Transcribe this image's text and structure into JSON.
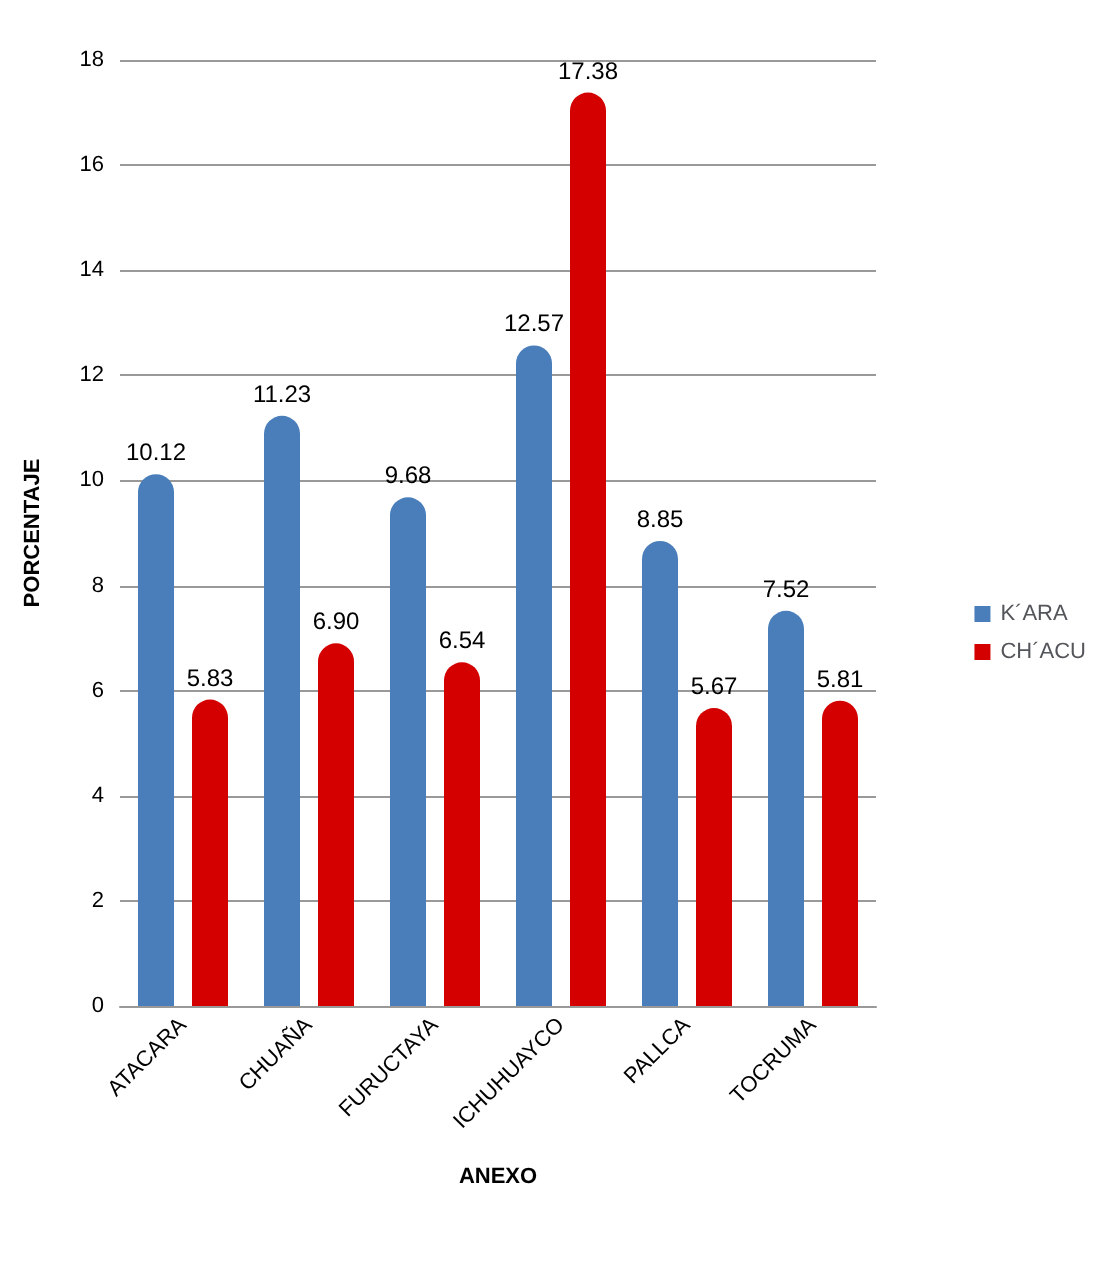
{
  "chart_data": {
    "type": "bar",
    "xlabel": "ANEXO",
    "ylabel": "PORCENTAJE",
    "categories": [
      "ATACARA",
      "CHUAÑA",
      "FURUCTAYA",
      "ICHUHUAYCO",
      "PALLCA",
      "TOCRUMA"
    ],
    "series": [
      {
        "name": "K´ARA",
        "color": "#4a7ebb",
        "values": [
          10.12,
          11.23,
          9.68,
          12.57,
          8.85,
          7.52
        ]
      },
      {
        "name": "CH´ACU",
        "color": "#d40000",
        "values": [
          5.83,
          6.9,
          6.54,
          17.38,
          5.67,
          5.81
        ],
        "value_labels": [
          "5.83",
          "6.90",
          "6.54",
          "17.38",
          "5.67",
          "5.81"
        ]
      }
    ],
    "ylim": [
      0,
      18
    ],
    "yticks": [
      0,
      2,
      4,
      6,
      8,
      10,
      12,
      14,
      16,
      18
    ],
    "grid": "y",
    "legend": "right",
    "data_labels": true
  }
}
